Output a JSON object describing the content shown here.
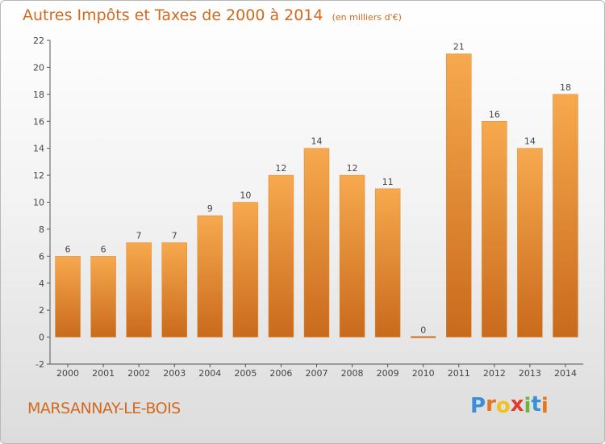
{
  "chart_data": {
    "type": "bar",
    "title": "Autres Impôts et Taxes de 2000 à 2014",
    "subtitle": "(en milliers d'€)",
    "categories": [
      "2000",
      "2001",
      "2002",
      "2003",
      "2004",
      "2005",
      "2006",
      "2007",
      "2008",
      "2009",
      "2010",
      "2011",
      "2012",
      "2013",
      "2014"
    ],
    "values": [
      6,
      6,
      7,
      7,
      9,
      10,
      12,
      14,
      12,
      11,
      0,
      21,
      16,
      14,
      18
    ],
    "data_labels": [
      "6",
      "6",
      "7",
      "7",
      "9",
      "10",
      "12",
      "14",
      "12",
      "11",
      "0",
      "21",
      "16",
      "14",
      "18"
    ],
    "ylim": [
      -2,
      22
    ],
    "yticks": [
      -2,
      0,
      2,
      4,
      6,
      8,
      10,
      12,
      14,
      16,
      18,
      20,
      22
    ],
    "ytick_labels": [
      "-2",
      "0",
      "2",
      "4",
      "6",
      "8",
      "10",
      "12",
      "14",
      "16",
      "18",
      "20",
      "22"
    ],
    "xlabel": "",
    "ylabel": "",
    "grid": false,
    "legend": "none"
  },
  "footer": {
    "commune": "MARSANNAY-LE-BOIS",
    "logo_letters": [
      "P",
      "r",
      "o",
      "x",
      "i",
      "t",
      "i"
    ],
    "logo_colors": [
      "#3a8fd8",
      "#e8731d",
      "#f2c21b",
      "#e23c2d",
      "#6db33f",
      "#3a8fd8",
      "#e8731d"
    ]
  },
  "colors": {
    "text_accent": "#d2691e",
    "bar_light": "#f7a94e",
    "bar_dark": "#c96a1c",
    "axis": "#555555"
  }
}
